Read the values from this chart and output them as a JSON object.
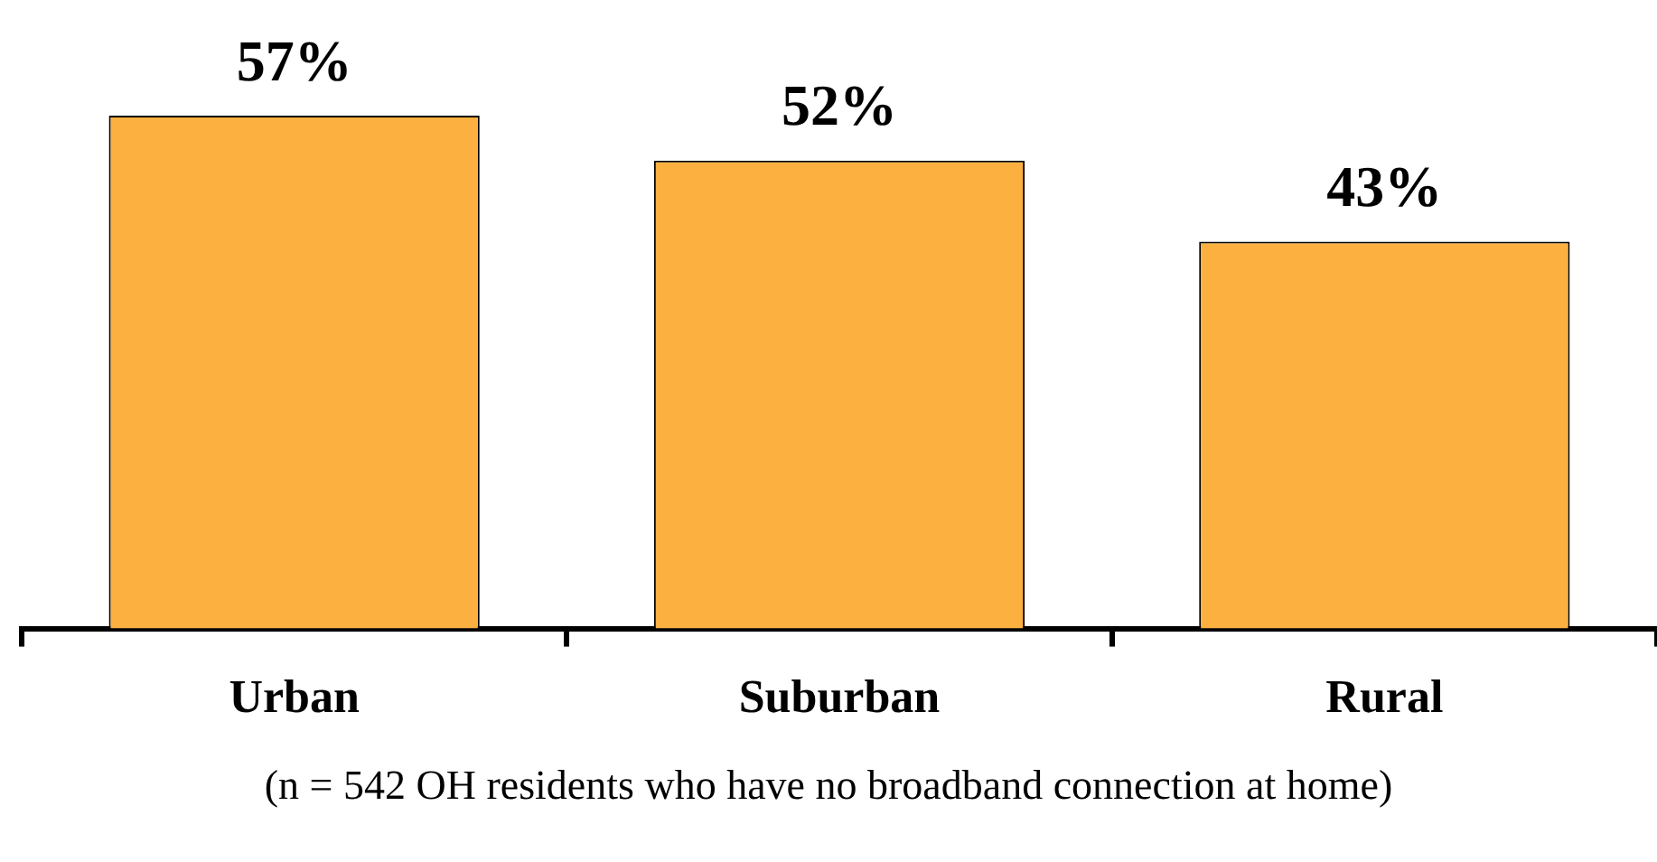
{
  "chart_data": {
    "type": "bar",
    "categories": [
      "Urban",
      "Suburban",
      "Rural"
    ],
    "values": [
      57,
      52,
      43
    ],
    "color": "#fbb040",
    "value_labels": [
      "57%",
      "52%",
      "43%"
    ],
    "grid": false,
    "legend": false,
    "annotations": [
      "(n = 542 OH residents who have no broadband connection at home)"
    ]
  }
}
